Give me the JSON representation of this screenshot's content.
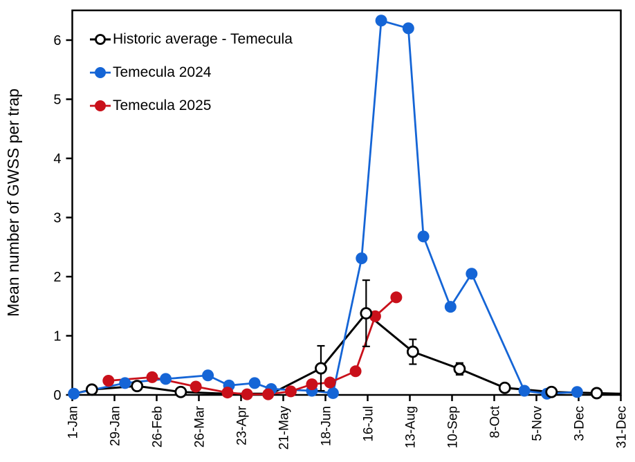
{
  "chart_data": {
    "type": "line",
    "title": "",
    "xlabel": "",
    "ylabel": "Mean number of GWSS per trap",
    "ylim": [
      0,
      6.5
    ],
    "yticks": [
      0,
      1,
      2,
      3,
      4,
      5,
      6
    ],
    "grid": false,
    "legend_position": "top-left",
    "xticks": [
      {
        "day": 1,
        "label": "1-Jan"
      },
      {
        "day": 29,
        "label": "29-Jan"
      },
      {
        "day": 57,
        "label": "26-Feb"
      },
      {
        "day": 85,
        "label": "26-Mar"
      },
      {
        "day": 113,
        "label": "23-Apr"
      },
      {
        "day": 141,
        "label": "21-May"
      },
      {
        "day": 169,
        "label": "18-Jun"
      },
      {
        "day": 197,
        "label": "16-Jul"
      },
      {
        "day": 225,
        "label": "13-Aug"
      },
      {
        "day": 253,
        "label": "10-Sep"
      },
      {
        "day": 281,
        "label": "8-Oct"
      },
      {
        "day": 309,
        "label": "5-Nov"
      },
      {
        "day": 337,
        "label": "3-Dec"
      },
      {
        "day": 365,
        "label": "31-Dec"
      }
    ],
    "series": [
      {
        "name": "Historic average - Temecula",
        "color": "#000000",
        "marker": "open-circle",
        "points": [
          {
            "day": 2,
            "value": 0.02,
            "marker": false
          },
          {
            "day": 14,
            "value": 0.09
          },
          {
            "day": 44,
            "value": 0.15
          },
          {
            "day": 73,
            "value": 0.05
          },
          {
            "day": 103,
            "value": 0.02,
            "marker": false
          },
          {
            "day": 133,
            "value": 0.02,
            "marker": false
          },
          {
            "day": 166,
            "value": 0.45,
            "err": 0.38
          },
          {
            "day": 196,
            "value": 1.38,
            "err": 0.56
          },
          {
            "day": 227,
            "value": 0.73,
            "err": 0.21
          },
          {
            "day": 258,
            "value": 0.44,
            "err": 0.1
          },
          {
            "day": 288,
            "value": 0.12
          },
          {
            "day": 319,
            "value": 0.05
          },
          {
            "day": 349,
            "value": 0.03
          },
          {
            "day": 365,
            "value": 0.02,
            "marker": false
          }
        ]
      },
      {
        "name": "Temecula 2024",
        "color": "#1565D6",
        "marker": "filled-circle",
        "points": [
          {
            "day": 2,
            "value": 0.02
          },
          {
            "day": 36,
            "value": 0.2
          },
          {
            "day": 63,
            "value": 0.27
          },
          {
            "day": 91,
            "value": 0.33
          },
          {
            "day": 105,
            "value": 0.16
          },
          {
            "day": 122,
            "value": 0.2
          },
          {
            "day": 133,
            "value": 0.1
          },
          {
            "day": 160,
            "value": 0.07
          },
          {
            "day": 174,
            "value": 0.03
          },
          {
            "day": 193,
            "value": 2.31
          },
          {
            "day": 206,
            "value": 6.33
          },
          {
            "day": 224,
            "value": 6.2
          },
          {
            "day": 234,
            "value": 2.68
          },
          {
            "day": 252,
            "value": 1.49
          },
          {
            "day": 266,
            "value": 2.05
          },
          {
            "day": 301,
            "value": 0.07
          },
          {
            "day": 316,
            "value": 0.02
          },
          {
            "day": 336,
            "value": 0.05
          }
        ]
      },
      {
        "name": "Temecula 2025",
        "color": "#C9101A",
        "marker": "filled-circle",
        "points": [
          {
            "day": 25,
            "value": 0.24
          },
          {
            "day": 54,
            "value": 0.3
          },
          {
            "day": 83,
            "value": 0.14
          },
          {
            "day": 104,
            "value": 0.04
          },
          {
            "day": 117,
            "value": 0.01
          },
          {
            "day": 131,
            "value": 0.01
          },
          {
            "day": 146,
            "value": 0.06
          },
          {
            "day": 160,
            "value": 0.18
          },
          {
            "day": 172,
            "value": 0.21
          },
          {
            "day": 189,
            "value": 0.4
          },
          {
            "day": 202,
            "value": 1.33
          },
          {
            "day": 216,
            "value": 1.65
          }
        ]
      }
    ]
  }
}
